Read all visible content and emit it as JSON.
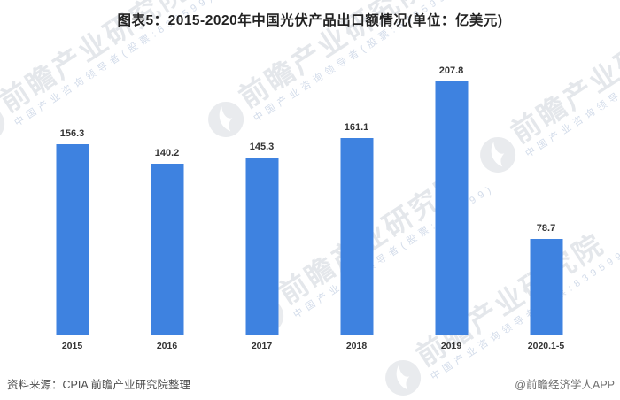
{
  "title": "图表5：2015-2020年中国光伏产品出口额情况(单位：亿美元)",
  "chart_data": {
    "type": "bar",
    "categories": [
      "2015",
      "2016",
      "2017",
      "2018",
      "2019",
      "2020.1-5"
    ],
    "values": [
      156.3,
      140.2,
      145.3,
      161.1,
      207.8,
      78.7
    ],
    "title": "图表5：2015-2020年中国光伏产品出口额情况(单位：亿美元)",
    "unit": "亿美元",
    "ylim": [
      0,
      240
    ],
    "bar_color": "#3e82e0",
    "grid": false,
    "legend": "none",
    "value_labels": true
  },
  "watermark": {
    "brand": "前瞻产业研究院",
    "tagline": "中国产业咨询领导者(股票:839599)"
  },
  "footer": {
    "source": "资料来源：CPIA 前瞻产业研究院整理",
    "credit": "@前瞻经济学人APP"
  }
}
